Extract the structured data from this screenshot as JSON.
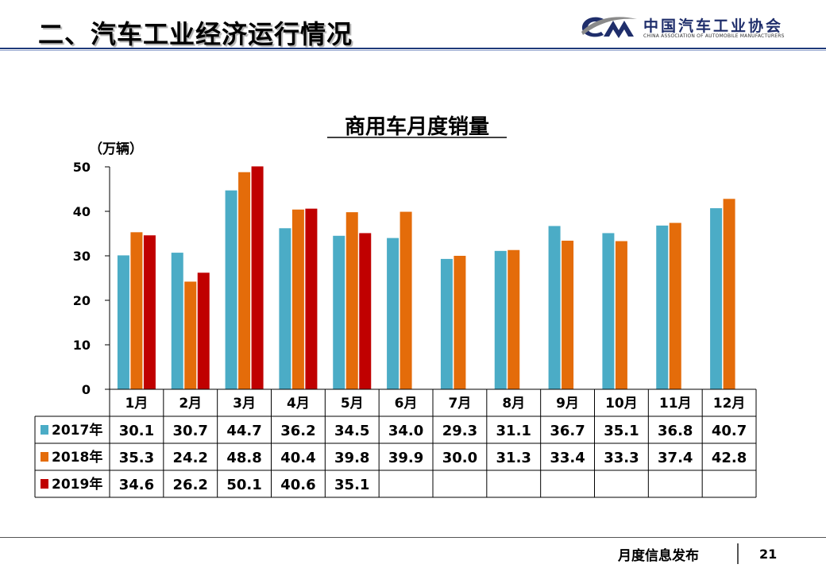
{
  "header": {
    "title": "二、汽车工业经济运行情况",
    "logo_name": "中国汽车工业协会",
    "logo_en": "CHINA ASSOCIATION OF AUTOMOBILE MANUFACTURERS"
  },
  "footer": {
    "label": "月度信息发布",
    "page": "21"
  },
  "colors": {
    "s2017": "#4bacc6",
    "s2018": "#e46c0a",
    "s2019": "#c00000",
    "brand": "#1f2e6b"
  },
  "chart_data": {
    "type": "bar",
    "title": "商用车月度销量",
    "ylabel": "（万辆）",
    "ylim": [
      0,
      50
    ],
    "yticks": [
      0,
      10,
      20,
      30,
      40,
      50
    ],
    "categories": [
      "1月",
      "2月",
      "3月",
      "4月",
      "5月",
      "6月",
      "7月",
      "8月",
      "9月",
      "10月",
      "11月",
      "12月"
    ],
    "series": [
      {
        "name": "2017年",
        "color": "#4bacc6",
        "values": [
          30.1,
          30.7,
          44.7,
          36.2,
          34.5,
          34.0,
          29.3,
          31.1,
          36.7,
          35.1,
          36.8,
          40.7
        ]
      },
      {
        "name": "2018年",
        "color": "#e46c0a",
        "values": [
          35.3,
          24.2,
          48.8,
          40.4,
          39.8,
          39.9,
          30.0,
          31.3,
          33.4,
          33.3,
          37.4,
          42.8
        ]
      },
      {
        "name": "2019年",
        "color": "#c00000",
        "values": [
          34.6,
          26.2,
          50.1,
          40.6,
          35.1,
          null,
          null,
          null,
          null,
          null,
          null,
          null
        ]
      }
    ],
    "legend": "data-table-left",
    "grid": false
  }
}
